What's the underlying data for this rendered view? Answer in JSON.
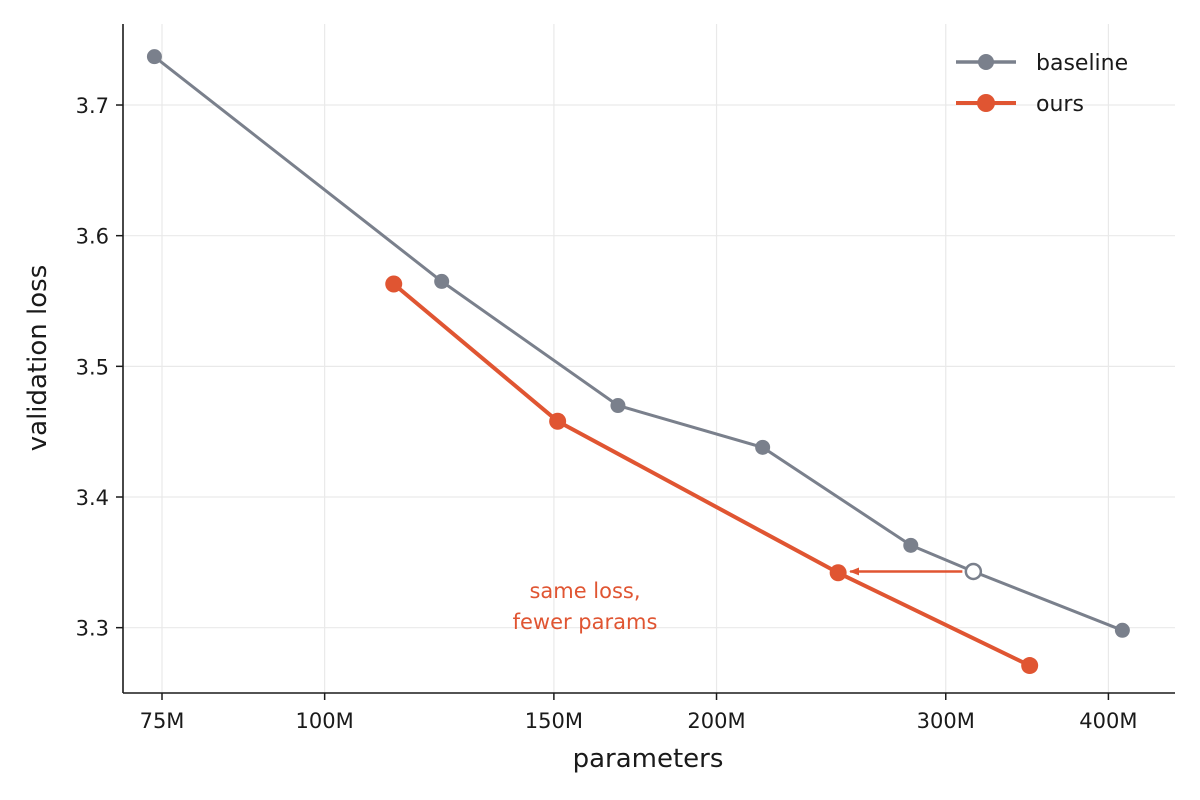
{
  "chart_data": {
    "type": "line",
    "title": "",
    "xlabel": "parameters",
    "ylabel": "validation loss",
    "xscale": "log",
    "xlim": [
      70000000,
      450000000
    ],
    "ylim": [
      3.25,
      3.762
    ],
    "xticks": [
      {
        "value": 75000000,
        "label": "75M"
      },
      {
        "value": 100000000,
        "label": "100M"
      },
      {
        "value": 150000000,
        "label": "150M"
      },
      {
        "value": 200000000,
        "label": "200M"
      },
      {
        "value": 300000000,
        "label": "300M"
      },
      {
        "value": 400000000,
        "label": "400M"
      }
    ],
    "yticks": [
      {
        "value": 3.3,
        "label": "3.3"
      },
      {
        "value": 3.4,
        "label": "3.4"
      },
      {
        "value": 3.5,
        "label": "3.5"
      },
      {
        "value": 3.6,
        "label": "3.6"
      },
      {
        "value": 3.7,
        "label": "3.7"
      }
    ],
    "grid": true,
    "legend_position": "top-right",
    "series": [
      {
        "name": "baseline",
        "color": "#7a808c",
        "points": [
          {
            "x": 74000000,
            "y": 3.737
          },
          {
            "x": 123000000,
            "y": 3.565
          },
          {
            "x": 168000000,
            "y": 3.47
          },
          {
            "x": 217000000,
            "y": 3.438
          },
          {
            "x": 282000000,
            "y": 3.363
          },
          {
            "x": 315000000,
            "y": 3.343,
            "hollow": true
          },
          {
            "x": 410000000,
            "y": 3.298
          }
        ]
      },
      {
        "name": "ours",
        "color": "#e05532",
        "points": [
          {
            "x": 113000000,
            "y": 3.563
          },
          {
            "x": 151000000,
            "y": 3.458
          },
          {
            "x": 248000000,
            "y": 3.342
          },
          {
            "x": 348000000,
            "y": 3.271
          }
        ]
      }
    ],
    "annotation": {
      "lines": [
        "same loss,",
        "fewer params"
      ],
      "color": "#e05532",
      "arrow_from": {
        "x": 315000000,
        "y": 3.343
      },
      "arrow_to": {
        "x": 248000000,
        "y": 3.343
      }
    }
  }
}
